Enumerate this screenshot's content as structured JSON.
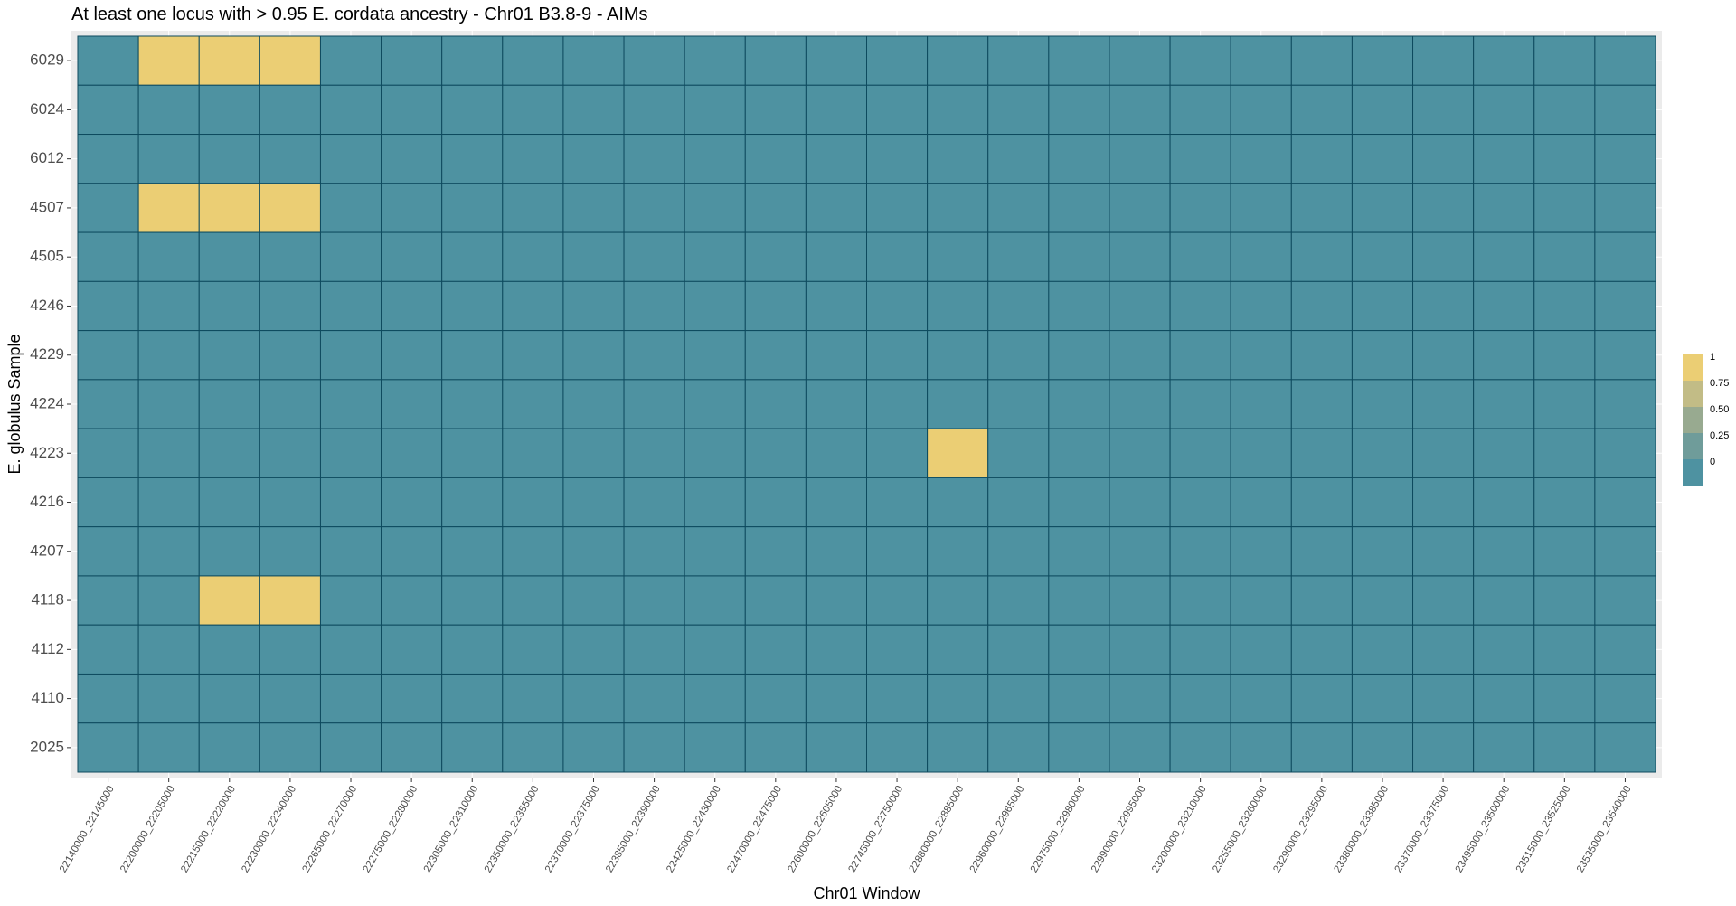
{
  "chart_data": {
    "type": "heatmap",
    "title": "At least one locus with > 0.95 E. cordata ancestry - Chr01 B3.8-9 - AIMs",
    "xlabel": "Chr01 Window",
    "ylabel": "E. globulus Sample",
    "x_categories": [
      "22140000_22145000",
      "22200000_22205000",
      "22215000_22220000",
      "22230000_22240000",
      "22265000_22270000",
      "22275000_22280000",
      "22305000_22310000",
      "22350000_22355000",
      "22370000_22375000",
      "22385000_22390000",
      "22425000_22430000",
      "22470000_22475000",
      "22600000_22605000",
      "22745000_22750000",
      "22880000_22885000",
      "22960000_22965000",
      "22975000_22980000",
      "22990000_22995000",
      "23200000_23210000",
      "23255000_23260000",
      "23290000_23295000",
      "23380000_23385000",
      "23370000_23375000",
      "23495000_23500000",
      "23515000_23525000",
      "23535000_23540000"
    ],
    "y_categories": [
      "6029",
      "6024",
      "6012",
      "4507",
      "4505",
      "4246",
      "4229",
      "4224",
      "4223",
      "4216",
      "4207",
      "4118",
      "4112",
      "4110",
      "2025"
    ],
    "values": [
      [
        0,
        1,
        1,
        1,
        0,
        0,
        0,
        0,
        0,
        0,
        0,
        0,
        0,
        0,
        0,
        0,
        0,
        0,
        0,
        0,
        0,
        0,
        0,
        0,
        0,
        0
      ],
      [
        0,
        0,
        0,
        0,
        0,
        0,
        0,
        0,
        0,
        0,
        0,
        0,
        0,
        0,
        0,
        0,
        0,
        0,
        0,
        0,
        0,
        0,
        0,
        0,
        0,
        0
      ],
      [
        0,
        0,
        0,
        0,
        0,
        0,
        0,
        0,
        0,
        0,
        0,
        0,
        0,
        0,
        0,
        0,
        0,
        0,
        0,
        0,
        0,
        0,
        0,
        0,
        0,
        0
      ],
      [
        0,
        1,
        1,
        1,
        0,
        0,
        0,
        0,
        0,
        0,
        0,
        0,
        0,
        0,
        0,
        0,
        0,
        0,
        0,
        0,
        0,
        0,
        0,
        0,
        0,
        0
      ],
      [
        0,
        0,
        0,
        0,
        0,
        0,
        0,
        0,
        0,
        0,
        0,
        0,
        0,
        0,
        0,
        0,
        0,
        0,
        0,
        0,
        0,
        0,
        0,
        0,
        0,
        0
      ],
      [
        0,
        0,
        0,
        0,
        0,
        0,
        0,
        0,
        0,
        0,
        0,
        0,
        0,
        0,
        0,
        0,
        0,
        0,
        0,
        0,
        0,
        0,
        0,
        0,
        0,
        0
      ],
      [
        0,
        0,
        0,
        0,
        0,
        0,
        0,
        0,
        0,
        0,
        0,
        0,
        0,
        0,
        0,
        0,
        0,
        0,
        0,
        0,
        0,
        0,
        0,
        0,
        0,
        0
      ],
      [
        0,
        0,
        0,
        0,
        0,
        0,
        0,
        0,
        0,
        0,
        0,
        0,
        0,
        0,
        0,
        0,
        0,
        0,
        0,
        0,
        0,
        0,
        0,
        0,
        0,
        0
      ],
      [
        0,
        0,
        0,
        0,
        0,
        0,
        0,
        0,
        0,
        0,
        0,
        0,
        0,
        0,
        1,
        0,
        0,
        0,
        0,
        0,
        0,
        0,
        0,
        0,
        0,
        0
      ],
      [
        0,
        0,
        0,
        0,
        0,
        0,
        0,
        0,
        0,
        0,
        0,
        0,
        0,
        0,
        0,
        0,
        0,
        0,
        0,
        0,
        0,
        0,
        0,
        0,
        0,
        0
      ],
      [
        0,
        0,
        0,
        0,
        0,
        0,
        0,
        0,
        0,
        0,
        0,
        0,
        0,
        0,
        0,
        0,
        0,
        0,
        0,
        0,
        0,
        0,
        0,
        0,
        0,
        0
      ],
      [
        0,
        0,
        1,
        1,
        0,
        0,
        0,
        0,
        0,
        0,
        0,
        0,
        0,
        0,
        0,
        0,
        0,
        0,
        0,
        0,
        0,
        0,
        0,
        0,
        0,
        0
      ],
      [
        0,
        0,
        0,
        0,
        0,
        0,
        0,
        0,
        0,
        0,
        0,
        0,
        0,
        0,
        0,
        0,
        0,
        0,
        0,
        0,
        0,
        0,
        0,
        0,
        0,
        0
      ],
      [
        0,
        0,
        0,
        0,
        0,
        0,
        0,
        0,
        0,
        0,
        0,
        0,
        0,
        0,
        0,
        0,
        0,
        0,
        0,
        0,
        0,
        0,
        0,
        0,
        0,
        0
      ],
      [
        0,
        0,
        0,
        0,
        0,
        0,
        0,
        0,
        0,
        0,
        0,
        0,
        0,
        0,
        0,
        0,
        0,
        0,
        0,
        0,
        0,
        0,
        0,
        0,
        0,
        0
      ]
    ],
    "value_range": [
      0,
      1
    ],
    "color_low": "#4e92a1",
    "color_high": "#ebce74",
    "cell_border_color": "#0d4a5e",
    "panel_background": "#ebebeb",
    "grid": true,
    "legend": {
      "position": "right",
      "labels": [
        "1",
        "0.75",
        "0.50",
        "0.25",
        "0"
      ],
      "values": [
        1,
        0.75,
        0.5,
        0.25,
        0
      ],
      "colors": [
        "#ebce74",
        "#c2bc86",
        "#98aa90",
        "#6f9c9a",
        "#4e92a1"
      ]
    }
  }
}
